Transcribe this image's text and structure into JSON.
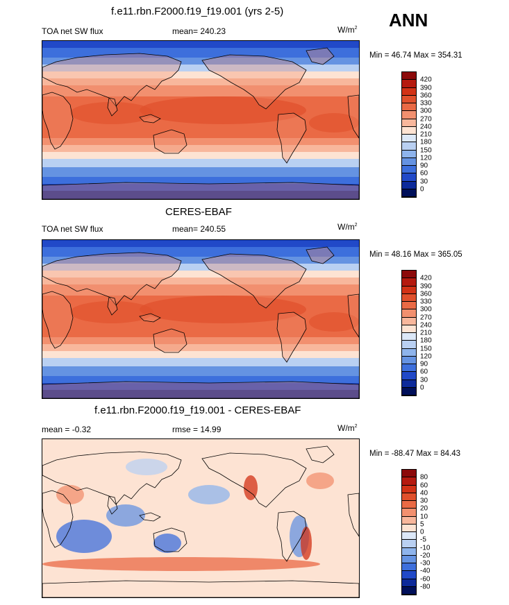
{
  "season": "ANN",
  "panels": [
    {
      "id": "model",
      "title": "f.e11.rbn.F2000.f19_f19.001 (yrs 2-5)",
      "left_label": "TOA net SW flux",
      "center_label": "mean= 240.23",
      "units": "W/m",
      "units_sup": "2",
      "minmax": "Min =  46.74 Max = 354.31",
      "colorbar_labels": [
        "420",
        "390",
        "360",
        "330",
        "300",
        "270",
        "240",
        "210",
        "180",
        "150",
        "120",
        "90",
        "60",
        "30",
        "0"
      ],
      "colorbar_colors": [
        "#8c0a0a",
        "#b51a0f",
        "#d23216",
        "#e0502c",
        "#ea6a45",
        "#f2906f",
        "#f8b79c",
        "#fde3d3",
        "#dce8f8",
        "#b9d0f2",
        "#8eb4ec",
        "#6593e2",
        "#3d6fdc",
        "#2149c8",
        "#0d2a9a",
        "#00105a"
      ]
    },
    {
      "id": "obs",
      "title": "CERES-EBAF",
      "left_label": "TOA net SW flux",
      "center_label": "mean= 240.55",
      "units": "W/m",
      "units_sup": "2",
      "minmax": "Min =  48.16 Max = 365.05",
      "colorbar_labels": [
        "420",
        "390",
        "360",
        "330",
        "300",
        "270",
        "240",
        "210",
        "180",
        "150",
        "120",
        "90",
        "60",
        "30",
        "0"
      ],
      "colorbar_colors": [
        "#8c0a0a",
        "#b51a0f",
        "#d23216",
        "#e0502c",
        "#ea6a45",
        "#f2906f",
        "#f8b79c",
        "#fde3d3",
        "#dce8f8",
        "#b9d0f2",
        "#8eb4ec",
        "#6593e2",
        "#3d6fdc",
        "#2149c8",
        "#0d2a9a",
        "#00105a"
      ]
    },
    {
      "id": "diff",
      "title": "f.e11.rbn.F2000.f19_f19.001 - CERES-EBAF",
      "left_label": "mean =  -0.32",
      "center_label": "rmse =  14.99",
      "units": "W/m",
      "units_sup": "2",
      "minmax": "Min = -88.47 Max =  84.43",
      "colorbar_labels": [
        "80",
        "60",
        "40",
        "30",
        "20",
        "10",
        "5",
        "0",
        "-5",
        "-10",
        "-20",
        "-30",
        "-40",
        "-60",
        "-80"
      ],
      "colorbar_colors": [
        "#8c0a0a",
        "#b51a0f",
        "#d23216",
        "#e0502c",
        "#ea6a45",
        "#f2906f",
        "#f8b79c",
        "#fde3d3",
        "#dce8f8",
        "#b9d0f2",
        "#8eb4ec",
        "#6593e2",
        "#3d6fdc",
        "#2149c8",
        "#0d2a9a",
        "#00105a"
      ]
    }
  ]
}
